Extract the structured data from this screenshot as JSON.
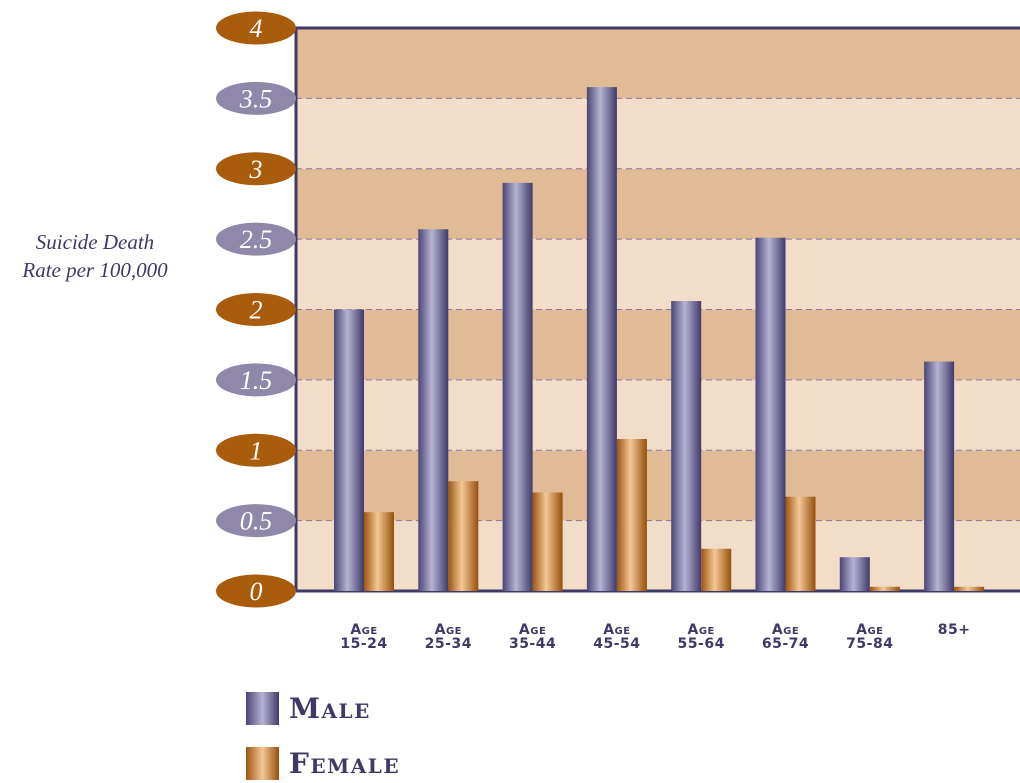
{
  "chart_data": {
    "type": "bar",
    "title": "",
    "ylabel": "Suicide Death Rate per 100,000",
    "ylabel_lines": [
      "Suicide Death",
      "Rate per 100,000"
    ],
    "xlabel": "",
    "ylim": [
      0,
      4
    ],
    "yticks": [
      "0",
      "0.5",
      "1",
      "1.5",
      "2",
      "2.5",
      "3",
      "3.5",
      "4"
    ],
    "categories": [
      [
        "Age",
        "15-24"
      ],
      [
        "Age",
        "25-34"
      ],
      [
        "Age",
        "35-44"
      ],
      [
        "Age",
        "45-54"
      ],
      [
        "Age",
        "55-64"
      ],
      [
        "Age",
        "65-74"
      ],
      [
        "Age",
        "75-84"
      ],
      [
        "85+"
      ]
    ],
    "series": [
      {
        "name": "Male",
        "values": [
          2.0,
          2.57,
          2.9,
          3.58,
          2.06,
          2.51,
          0.24,
          1.63
        ]
      },
      {
        "name": "Female",
        "values": [
          0.56,
          0.78,
          0.7,
          1.08,
          0.3,
          0.67,
          0.03,
          0.03
        ]
      }
    ],
    "legend_position": "bottom-left",
    "grid": true,
    "colors": {
      "male": "#5b5587",
      "male_light": "#b5b1d1",
      "female": "#a85f14",
      "female_light": "#f0c08a",
      "band_dark": "#e0bb96",
      "band_light": "#f2ddc8",
      "tick_dark": "#a85c0c",
      "tick_light": "#8f88aa",
      "axis": "#3e3a66"
    }
  }
}
